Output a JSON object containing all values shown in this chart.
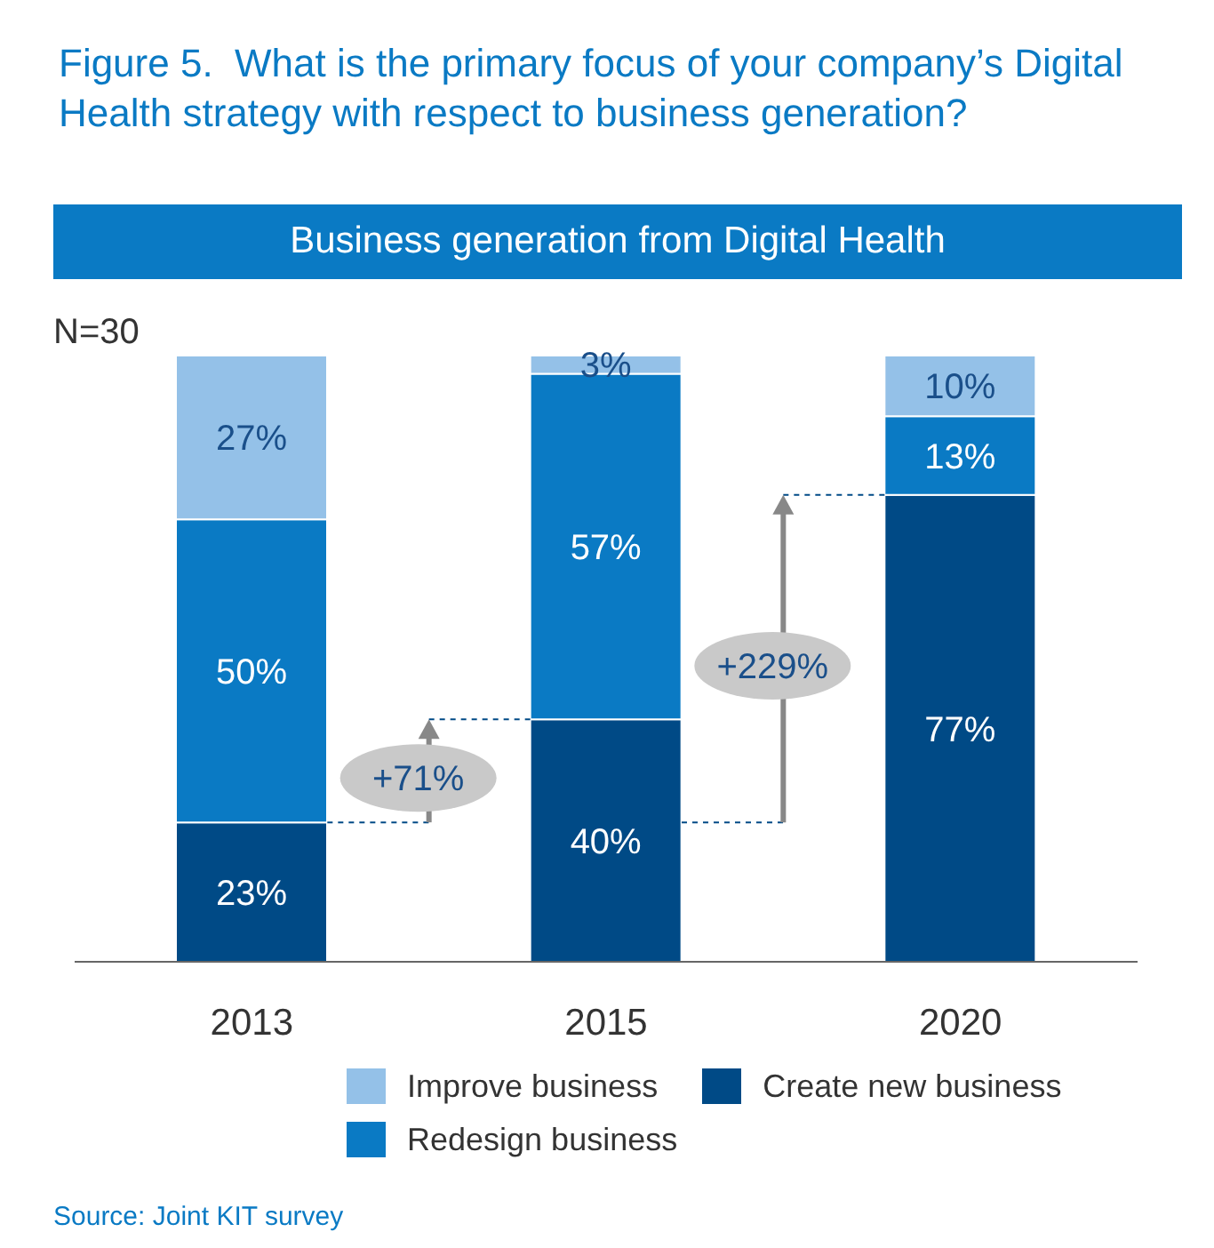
{
  "chart_data": {
    "type": "bar",
    "title": "Figure 5.  What is the primary focus of your company’s Digital Health strategy with respect to business generation?",
    "subtitle": "Business generation from Digital Health",
    "categories": [
      "2013",
      "2015",
      "2020"
    ],
    "stacked": true,
    "legend": "bottom",
    "series": [
      {
        "name": "Create new business",
        "color": "#004a86",
        "values": [
          23,
          40,
          77
        ],
        "value_labels": [
          "23%",
          "40%",
          "77%"
        ]
      },
      {
        "name": "Redesign business",
        "color": "#0a7ac4",
        "values": [
          50,
          57,
          13
        ],
        "value_labels": [
          "50%",
          "57%",
          "13%"
        ]
      },
      {
        "name": "Improve business",
        "color": "#94c1e8",
        "values": [
          27,
          3,
          10
        ],
        "value_labels": [
          "27%",
          "3%",
          "10%"
        ]
      }
    ],
    "annotations": [
      "N=30",
      "+71%",
      "+229%",
      "Source: Joint KIT survey"
    ]
  }
}
